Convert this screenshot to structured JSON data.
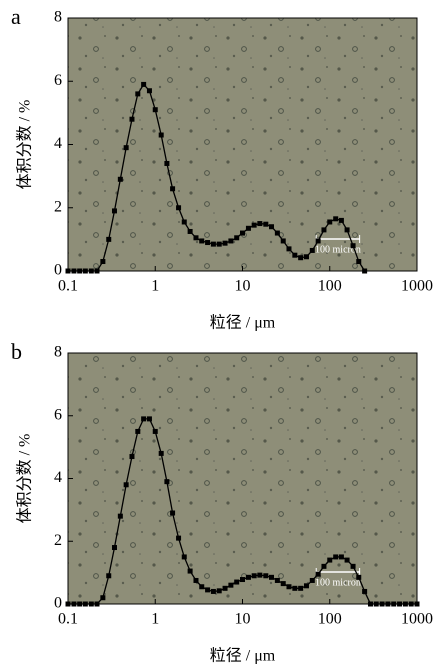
{
  "chart_data": [
    {
      "type": "line",
      "label": "a",
      "x_label": "粒径 / μm",
      "y_label": "体积分数 / %",
      "annotation": "100 micron",
      "xscale": "log",
      "xlim": [
        0.1,
        1000
      ],
      "xticks": [
        0.1,
        1,
        10,
        100,
        1000
      ],
      "ylim": [
        0,
        8
      ],
      "yticks": [
        0,
        2,
        4,
        6,
        8
      ],
      "color": "#000000",
      "marker": "square",
      "x": [
        0.1,
        0.117,
        0.136,
        0.158,
        0.185,
        0.215,
        0.251,
        0.293,
        0.341,
        0.398,
        0.464,
        0.541,
        0.631,
        0.736,
        0.858,
        1,
        1.17,
        1.36,
        1.58,
        1.85,
        2.15,
        2.51,
        2.93,
        3.41,
        3.98,
        4.64,
        5.41,
        6.31,
        7.36,
        8.58,
        10,
        11.7,
        13.6,
        15.8,
        18.5,
        21.5,
        25.1,
        29.3,
        34.1,
        39.8,
        46.4,
        54.1,
        63.1,
        73.6,
        85.8,
        100,
        117,
        136,
        158,
        185,
        215,
        251,
        293,
        341,
        398,
        464,
        541,
        631,
        736,
        858,
        1000
      ],
      "values": [
        0,
        0,
        0,
        0,
        0,
        0,
        0.3,
        1.0,
        1.9,
        2.9,
        3.9,
        4.8,
        5.6,
        5.9,
        5.7,
        5.1,
        4.3,
        3.4,
        2.6,
        2.0,
        1.55,
        1.25,
        1.05,
        0.95,
        0.9,
        0.85,
        0.85,
        0.88,
        0.95,
        1.05,
        1.2,
        1.35,
        1.45,
        1.5,
        1.48,
        1.4,
        1.2,
        0.95,
        0.7,
        0.5,
        0.42,
        0.45,
        0.65,
        0.95,
        1.3,
        1.55,
        1.65,
        1.6,
        1.3,
        0.8,
        0.3,
        0,
        null,
        null,
        null,
        null,
        null,
        null,
        null,
        null,
        null
      ]
    },
    {
      "type": "line",
      "label": "b",
      "x_label": "粒径 / μm",
      "y_label": "体积分数 / %",
      "annotation": "100 micron",
      "xscale": "log",
      "xlim": [
        0.1,
        1000
      ],
      "xticks": [
        0.1,
        1,
        10,
        100,
        1000
      ],
      "ylim": [
        0,
        8
      ],
      "yticks": [
        0,
        2,
        4,
        6,
        8
      ],
      "color": "#000000",
      "marker": "square",
      "x": [
        0.1,
        0.117,
        0.136,
        0.158,
        0.185,
        0.215,
        0.251,
        0.293,
        0.341,
        0.398,
        0.464,
        0.541,
        0.631,
        0.736,
        0.858,
        1,
        1.17,
        1.36,
        1.58,
        1.85,
        2.15,
        2.51,
        2.93,
        3.41,
        3.98,
        4.64,
        5.41,
        6.31,
        7.36,
        8.58,
        10,
        11.7,
        13.6,
        15.8,
        18.5,
        21.5,
        25.1,
        29.3,
        34.1,
        39.8,
        46.4,
        54.1,
        63.1,
        73.6,
        85.8,
        100,
        117,
        136,
        158,
        185,
        215,
        251,
        293,
        341,
        398,
        464,
        541,
        631,
        736,
        858,
        1000
      ],
      "values": [
        0,
        0,
        0,
        0,
        0,
        0,
        0.2,
        0.9,
        1.8,
        2.8,
        3.8,
        4.7,
        5.5,
        5.9,
        5.9,
        5.5,
        4.8,
        3.9,
        2.9,
        2.1,
        1.5,
        1.05,
        0.75,
        0.55,
        0.45,
        0.4,
        0.42,
        0.5,
        0.6,
        0.7,
        0.78,
        0.85,
        0.9,
        0.92,
        0.9,
        0.85,
        0.75,
        0.65,
        0.55,
        0.5,
        0.5,
        0.58,
        0.75,
        0.95,
        1.2,
        1.4,
        1.5,
        1.5,
        1.4,
        1.2,
        0.85,
        0.4,
        0,
        0,
        0,
        0,
        0,
        0,
        0,
        0,
        0
      ]
    }
  ]
}
